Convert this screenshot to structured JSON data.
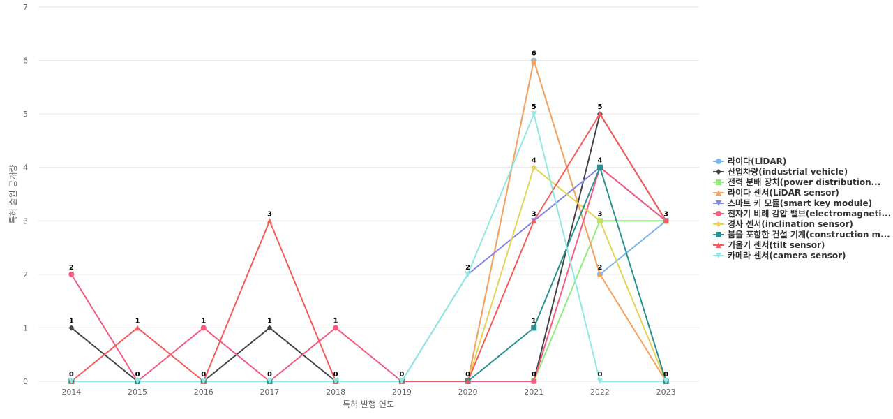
{
  "chart_data": {
    "type": "line",
    "title": "",
    "xlabel": "특허 발행 연도",
    "ylabel": "특허 출원 공개량",
    "x": [
      "2014",
      "2015",
      "2016",
      "2017",
      "2018",
      "2019",
      "2020",
      "2021",
      "2022",
      "2023"
    ],
    "ylim": [
      0,
      7
    ],
    "yticks": [
      "0",
      "1",
      "2",
      "3",
      "4",
      "5",
      "6",
      "7"
    ],
    "grid": true,
    "legend_position": "right",
    "series": [
      {
        "name": "라이다(LiDAR)",
        "color": "#7cb5ec",
        "marker": "circle",
        "values": [
          0,
          0,
          0,
          0,
          0,
          0,
          0,
          6,
          2,
          3
        ]
      },
      {
        "name": "산업차량(industrial vehicle)",
        "color": "#434348",
        "marker": "diamond",
        "values": [
          1,
          0,
          0,
          1,
          0,
          0,
          0,
          0,
          5,
          3
        ]
      },
      {
        "name": "전력 분배 장치(power distribution...",
        "color": "#90ed7d",
        "marker": "square",
        "values": [
          0,
          0,
          0,
          0,
          0,
          0,
          0,
          0,
          3,
          3
        ]
      },
      {
        "name": "라이다 센서(LiDAR sensor)",
        "color": "#f7a35c",
        "marker": "triangle",
        "values": [
          0,
          0,
          0,
          0,
          0,
          0,
          0,
          6,
          2,
          0
        ]
      },
      {
        "name": "스마트 키 모듈(smart key module)",
        "color": "#8085e9",
        "marker": "triangle-down",
        "values": [
          0,
          0,
          0,
          0,
          0,
          0,
          2,
          3,
          4,
          3
        ]
      },
      {
        "name": "전자기 비례 감압 밸브(electromagneti...",
        "color": "#f15c80",
        "marker": "circle",
        "values": [
          2,
          0,
          1,
          0,
          1,
          0,
          0,
          0,
          4,
          3
        ]
      },
      {
        "name": "경사 센서(inclination sensor)",
        "color": "#e4d354",
        "marker": "diamond",
        "values": [
          0,
          0,
          0,
          0,
          0,
          0,
          0,
          4,
          3,
          0
        ]
      },
      {
        "name": "붐을 포함한 건설 기계(construction m...",
        "color": "#2b908f",
        "marker": "square",
        "values": [
          0,
          0,
          0,
          0,
          0,
          0,
          0,
          1,
          4,
          0
        ]
      },
      {
        "name": "기울기 센서(tilt sensor)",
        "color": "#f45b5b",
        "marker": "triangle",
        "values": [
          0,
          1,
          0,
          3,
          0,
          0,
          0,
          3,
          5,
          3
        ]
      },
      {
        "name": "카메라 센서(camera sensor)",
        "color": "#91e8e1",
        "marker": "triangle-down",
        "values": [
          0,
          0,
          0,
          0,
          0,
          0,
          2,
          5,
          0,
          0
        ]
      }
    ],
    "data_labels": [
      {
        "x": "2014",
        "y": 2,
        "text": "2"
      },
      {
        "x": "2014",
        "y": 1,
        "text": "1"
      },
      {
        "x": "2014",
        "y": 0,
        "text": "0"
      },
      {
        "x": "2015",
        "y": 1,
        "text": "1"
      },
      {
        "x": "2015",
        "y": 0,
        "text": "0"
      },
      {
        "x": "2016",
        "y": 1,
        "text": "1"
      },
      {
        "x": "2016",
        "y": 0,
        "text": "0"
      },
      {
        "x": "2017",
        "y": 3,
        "text": "3"
      },
      {
        "x": "2017",
        "y": 1,
        "text": "1"
      },
      {
        "x": "2017",
        "y": 0,
        "text": "0"
      },
      {
        "x": "2018",
        "y": 1,
        "text": "1"
      },
      {
        "x": "2018",
        "y": 0,
        "text": "0"
      },
      {
        "x": "2019",
        "y": 0,
        "text": "0"
      },
      {
        "x": "2020",
        "y": 2,
        "text": "2"
      },
      {
        "x": "2020",
        "y": 0,
        "text": "0"
      },
      {
        "x": "2021",
        "y": 6,
        "text": "6"
      },
      {
        "x": "2021",
        "y": 5,
        "text": "5"
      },
      {
        "x": "2021",
        "y": 4,
        "text": "4"
      },
      {
        "x": "2021",
        "y": 3,
        "text": "3"
      },
      {
        "x": "2021",
        "y": 1,
        "text": "1"
      },
      {
        "x": "2021",
        "y": 0,
        "text": "0"
      },
      {
        "x": "2022",
        "y": 5,
        "text": "5"
      },
      {
        "x": "2022",
        "y": 4,
        "text": "4"
      },
      {
        "x": "2022",
        "y": 3,
        "text": "3"
      },
      {
        "x": "2022",
        "y": 2,
        "text": "2"
      },
      {
        "x": "2022",
        "y": 0,
        "text": "0"
      },
      {
        "x": "2023",
        "y": 3,
        "text": "3"
      },
      {
        "x": "2023",
        "y": 0,
        "text": "0"
      }
    ]
  }
}
